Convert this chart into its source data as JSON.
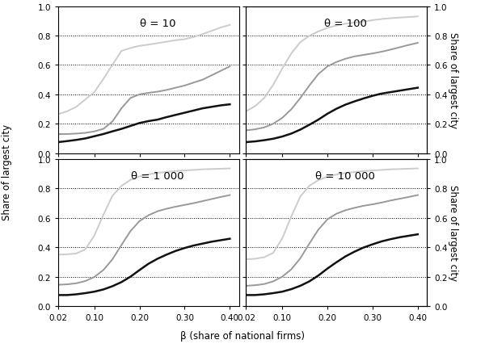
{
  "xlabel": "β (share of national firms)",
  "ylabel": "Share of largest city",
  "panels": [
    {
      "theta": "θ = 10",
      "row": 0,
      "col": 0
    },
    {
      "theta": "θ = 100",
      "row": 0,
      "col": 1
    },
    {
      "theta": "θ = 1 000",
      "row": 1,
      "col": 0
    },
    {
      "theta": "θ = 10 000",
      "row": 1,
      "col": 1
    }
  ],
  "beta": [
    0.02,
    0.04,
    0.06,
    0.08,
    0.1,
    0.12,
    0.14,
    0.16,
    0.18,
    0.2,
    0.22,
    0.24,
    0.26,
    0.28,
    0.3,
    0.32,
    0.34,
    0.36,
    0.38,
    0.4
  ],
  "series": {
    "theta10": {
      "dark": [
        0.075,
        0.082,
        0.09,
        0.1,
        0.115,
        0.13,
        0.148,
        0.165,
        0.185,
        0.205,
        0.218,
        0.228,
        0.245,
        0.26,
        0.275,
        0.29,
        0.305,
        0.315,
        0.325,
        0.332
      ],
      "mid": [
        0.13,
        0.13,
        0.133,
        0.138,
        0.148,
        0.165,
        0.215,
        0.305,
        0.375,
        0.4,
        0.41,
        0.418,
        0.43,
        0.445,
        0.46,
        0.48,
        0.5,
        0.53,
        0.56,
        0.59
      ],
      "light": [
        0.265,
        0.285,
        0.315,
        0.365,
        0.415,
        0.505,
        0.6,
        0.695,
        0.715,
        0.73,
        0.738,
        0.748,
        0.758,
        0.768,
        0.775,
        0.79,
        0.81,
        0.832,
        0.855,
        0.872
      ]
    },
    "theta100": {
      "dark": [
        0.075,
        0.08,
        0.088,
        0.098,
        0.113,
        0.133,
        0.16,
        0.193,
        0.228,
        0.268,
        0.302,
        0.33,
        0.352,
        0.372,
        0.39,
        0.405,
        0.415,
        0.425,
        0.435,
        0.445
      ],
      "mid": [
        0.155,
        0.162,
        0.175,
        0.2,
        0.24,
        0.298,
        0.375,
        0.46,
        0.538,
        0.59,
        0.62,
        0.642,
        0.658,
        0.668,
        0.678,
        0.69,
        0.704,
        0.72,
        0.736,
        0.75
      ],
      "light": [
        0.285,
        0.32,
        0.375,
        0.465,
        0.575,
        0.678,
        0.755,
        0.798,
        0.828,
        0.852,
        0.868,
        0.88,
        0.888,
        0.896,
        0.904,
        0.912,
        0.918,
        0.922,
        0.926,
        0.93
      ]
    },
    "theta1000": {
      "dark": [
        0.075,
        0.075,
        0.08,
        0.088,
        0.098,
        0.113,
        0.135,
        0.163,
        0.2,
        0.245,
        0.288,
        0.322,
        0.35,
        0.375,
        0.395,
        0.412,
        0.425,
        0.438,
        0.448,
        0.458
      ],
      "mid": [
        0.145,
        0.148,
        0.155,
        0.17,
        0.198,
        0.245,
        0.318,
        0.415,
        0.51,
        0.578,
        0.618,
        0.645,
        0.662,
        0.676,
        0.688,
        0.7,
        0.714,
        0.728,
        0.742,
        0.755
      ],
      "light": [
        0.35,
        0.352,
        0.358,
        0.385,
        0.48,
        0.62,
        0.75,
        0.818,
        0.858,
        0.882,
        0.896,
        0.906,
        0.912,
        0.918,
        0.922,
        0.926,
        0.93,
        0.932,
        0.934,
        0.936
      ]
    },
    "theta10000": {
      "dark": [
        0.075,
        0.075,
        0.08,
        0.088,
        0.098,
        0.115,
        0.138,
        0.168,
        0.208,
        0.255,
        0.298,
        0.338,
        0.37,
        0.398,
        0.42,
        0.44,
        0.455,
        0.468,
        0.478,
        0.488
      ],
      "mid": [
        0.138,
        0.142,
        0.15,
        0.168,
        0.2,
        0.25,
        0.325,
        0.425,
        0.52,
        0.59,
        0.628,
        0.652,
        0.668,
        0.682,
        0.692,
        0.704,
        0.718,
        0.73,
        0.742,
        0.755
      ],
      "light": [
        0.318,
        0.322,
        0.332,
        0.362,
        0.46,
        0.61,
        0.745,
        0.818,
        0.856,
        0.88,
        0.895,
        0.905,
        0.912,
        0.918,
        0.922,
        0.926,
        0.93,
        0.932,
        0.934,
        0.936
      ]
    }
  },
  "line_colors": {
    "dark": "#111111",
    "mid": "#999999",
    "light": "#cccccc"
  },
  "line_widths": {
    "dark": 1.8,
    "mid": 1.4,
    "light": 1.4
  },
  "ylim": [
    0.0,
    1.0
  ],
  "yticks": [
    0.0,
    0.2,
    0.4,
    0.6,
    0.8,
    1.0
  ],
  "xlim": [
    0.02,
    0.42
  ],
  "xticks": [
    0.02,
    0.1,
    0.2,
    0.3,
    0.4
  ],
  "xtick_labels": [
    "0.02",
    "0.10",
    "0.20",
    "0.30",
    "0.40"
  ],
  "grid_yticks": [
    0.2,
    0.4,
    0.6,
    0.8
  ],
  "background_color": "#ffffff",
  "label_fontsize": 8.5,
  "tick_fontsize": 7.5,
  "panel_label_fontsize": 9.5
}
